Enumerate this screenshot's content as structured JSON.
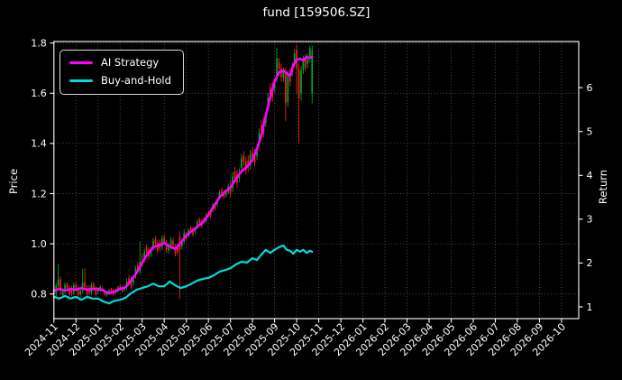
{
  "title": "fund [159506.SZ]",
  "legend": {
    "items": [
      {
        "label": "AI Strategy",
        "color": "#ff00ff"
      },
      {
        "label": "Buy-and-Hold",
        "color": "#00dcdc"
      }
    ]
  },
  "chart_data": {
    "type": "candlestick+line",
    "title": "fund [159506.SZ]",
    "left_axis_label": "Price",
    "right_axis_label": "Return",
    "x_tick_labels": [
      "2024-11",
      "2024-12",
      "2025-01",
      "2025-02",
      "2025-03",
      "2025-04",
      "2025-05",
      "2025-06",
      "2025-07",
      "2025-08",
      "2025-09",
      "2025-10",
      "2025-11",
      "2025-12",
      "2026-01",
      "2026-02",
      "2026-03",
      "2026-04",
      "2026-05",
      "2026-06",
      "2026-07",
      "2026-08",
      "2026-09",
      "2026-10"
    ],
    "x_range_months": [
      0,
      23.78
    ],
    "price_ticks": [
      "0.8",
      "1.0",
      "1.2",
      "1.4",
      "1.6",
      "1.8"
    ],
    "price_tick_values": [
      0.8,
      1.0,
      1.2,
      1.4,
      1.6,
      1.8
    ],
    "price_range": [
      0.702,
      1.806
    ],
    "return_ticks": [
      "1",
      "2",
      "3",
      "4",
      "5",
      "6"
    ],
    "return_tick_values": [
      1,
      2,
      3,
      4,
      5,
      6
    ],
    "return_range": [
      0.732,
      7.053
    ],
    "grid": true,
    "colors": {
      "background": "#000000",
      "axes_and_text": "#ffffff",
      "grid": "#6f6f6f",
      "candle_up": "#00a820",
      "candle_down": "#ef2020",
      "ai_strategy": "#ff00ff",
      "buy_and_hold": "#00dcdc"
    },
    "series": [
      {
        "name": "AI Strategy",
        "axis": "return",
        "style": "line",
        "points": [
          [
            0,
            1.37
          ],
          [
            0.25,
            1.41
          ],
          [
            0.5,
            1.37
          ],
          [
            0.75,
            1.41
          ],
          [
            1,
            1.39
          ],
          [
            1.25,
            1.43
          ],
          [
            1.5,
            1.39
          ],
          [
            1.75,
            1.41
          ],
          [
            2,
            1.41
          ],
          [
            2.25,
            1.37
          ],
          [
            2.5,
            1.31
          ],
          [
            2.75,
            1.35
          ],
          [
            3,
            1.41
          ],
          [
            3.25,
            1.45
          ],
          [
            3.5,
            1.6
          ],
          [
            3.75,
            1.78
          ],
          [
            4,
            2.01
          ],
          [
            4.25,
            2.21
          ],
          [
            4.5,
            2.36
          ],
          [
            4.75,
            2.4
          ],
          [
            5,
            2.46
          ],
          [
            5.25,
            2.38
          ],
          [
            5.5,
            2.32
          ],
          [
            5.75,
            2.46
          ],
          [
            6,
            2.63
          ],
          [
            6.25,
            2.73
          ],
          [
            6.5,
            2.83
          ],
          [
            6.75,
            2.93
          ],
          [
            7,
            3.1
          ],
          [
            7.25,
            3.3
          ],
          [
            7.5,
            3.5
          ],
          [
            7.75,
            3.62
          ],
          [
            8,
            3.72
          ],
          [
            8.25,
            3.92
          ],
          [
            8.5,
            4.09
          ],
          [
            8.75,
            4.2
          ],
          [
            9,
            4.35
          ],
          [
            9.2,
            4.6
          ],
          [
            9.4,
            4.91
          ],
          [
            9.6,
            5.36
          ],
          [
            9.8,
            5.77
          ],
          [
            10,
            6.14
          ],
          [
            10.2,
            6.35
          ],
          [
            10.4,
            6.39
          ],
          [
            10.55,
            6.33
          ],
          [
            10.7,
            6.27
          ],
          [
            10.85,
            6.51
          ],
          [
            11,
            6.64
          ],
          [
            11.15,
            6.66
          ],
          [
            11.3,
            6.62
          ],
          [
            11.45,
            6.7
          ],
          [
            11.6,
            6.68
          ],
          [
            11.7,
            6.7
          ]
        ]
      },
      {
        "name": "Buy-and-Hold",
        "axis": "return",
        "style": "line",
        "points": [
          [
            0,
            1.23
          ],
          [
            0.25,
            1.19
          ],
          [
            0.5,
            1.25
          ],
          [
            0.75,
            1.19
          ],
          [
            1,
            1.23
          ],
          [
            1.25,
            1.16
          ],
          [
            1.5,
            1.23
          ],
          [
            1.75,
            1.19
          ],
          [
            2,
            1.19
          ],
          [
            2.25,
            1.12
          ],
          [
            2.5,
            1.08
          ],
          [
            2.75,
            1.14
          ],
          [
            3,
            1.16
          ],
          [
            3.25,
            1.21
          ],
          [
            3.5,
            1.31
          ],
          [
            3.75,
            1.39
          ],
          [
            4,
            1.43
          ],
          [
            4.25,
            1.47
          ],
          [
            4.5,
            1.53
          ],
          [
            4.75,
            1.47
          ],
          [
            5,
            1.47
          ],
          [
            5.25,
            1.58
          ],
          [
            5.5,
            1.49
          ],
          [
            5.75,
            1.43
          ],
          [
            6,
            1.47
          ],
          [
            6.25,
            1.53
          ],
          [
            6.5,
            1.6
          ],
          [
            6.75,
            1.64
          ],
          [
            7,
            1.66
          ],
          [
            7.25,
            1.72
          ],
          [
            7.5,
            1.8
          ],
          [
            7.75,
            1.84
          ],
          [
            8,
            1.88
          ],
          [
            8.25,
            1.97
          ],
          [
            8.5,
            2.03
          ],
          [
            8.75,
            2.01
          ],
          [
            9,
            2.11
          ],
          [
            9.2,
            2.07
          ],
          [
            9.4,
            2.19
          ],
          [
            9.6,
            2.3
          ],
          [
            9.8,
            2.23
          ],
          [
            10,
            2.3
          ],
          [
            10.2,
            2.36
          ],
          [
            10.4,
            2.4
          ],
          [
            10.55,
            2.3
          ],
          [
            10.7,
            2.28
          ],
          [
            10.85,
            2.21
          ],
          [
            11,
            2.3
          ],
          [
            11.15,
            2.26
          ],
          [
            11.3,
            2.3
          ],
          [
            11.45,
            2.23
          ],
          [
            11.6,
            2.28
          ],
          [
            11.7,
            2.26
          ]
        ]
      }
    ],
    "candles_format": [
      "t_months",
      "open",
      "high",
      "low",
      "close"
    ],
    "candles": [
      [
        0.0,
        0.82,
        0.831,
        0.789,
        0.8
      ],
      [
        0.1,
        0.802,
        0.842,
        0.791,
        0.831
      ],
      [
        0.2,
        0.833,
        0.92,
        0.82,
        0.858
      ],
      [
        0.3,
        0.858,
        0.87,
        0.795,
        0.815
      ],
      [
        0.4,
        0.795,
        0.82,
        0.784,
        0.809
      ],
      [
        0.5,
        0.811,
        0.846,
        0.8,
        0.835
      ],
      [
        0.6,
        0.838,
        0.849,
        0.812,
        0.823
      ],
      [
        0.7,
        0.822,
        0.833,
        0.789,
        0.8
      ],
      [
        0.8,
        0.823,
        0.834,
        0.792,
        0.803
      ],
      [
        0.9,
        0.806,
        0.846,
        0.795,
        0.835
      ],
      [
        1.0,
        0.837,
        0.848,
        0.81,
        0.821
      ],
      [
        1.1,
        0.819,
        0.83,
        0.786,
        0.797
      ],
      [
        1.2,
        0.799,
        0.824,
        0.788,
        0.813
      ],
      [
        1.3,
        0.815,
        0.9,
        0.804,
        0.845
      ],
      [
        1.4,
        0.847,
        0.902,
        0.815,
        0.828
      ],
      [
        1.5,
        0.824,
        0.835,
        0.791,
        0.802
      ],
      [
        1.6,
        0.825,
        0.836,
        0.794,
        0.805
      ],
      [
        1.7,
        0.807,
        0.847,
        0.796,
        0.836
      ],
      [
        1.8,
        0.838,
        0.849,
        0.812,
        0.823
      ],
      [
        1.9,
        0.82,
        0.831,
        0.788,
        0.799
      ],
      [
        2.0,
        0.81,
        0.824,
        0.804,
        0.818
      ],
      [
        2.1,
        0.816,
        0.835,
        0.81,
        0.829
      ],
      [
        2.2,
        0.824,
        0.83,
        0.812,
        0.818
      ],
      [
        2.3,
        0.811,
        0.817,
        0.793,
        0.799
      ],
      [
        2.4,
        0.796,
        0.81,
        0.79,
        0.804
      ],
      [
        2.5,
        0.802,
        0.821,
        0.796,
        0.815
      ],
      [
        2.6,
        0.819,
        0.825,
        0.805,
        0.811
      ],
      [
        2.7,
        0.814,
        0.82,
        0.793,
        0.799
      ],
      [
        2.8,
        0.817,
        0.823,
        0.8,
        0.806
      ],
      [
        2.9,
        0.811,
        0.833,
        0.805,
        0.827
      ],
      [
        3.0,
        0.831,
        0.837,
        0.816,
        0.822
      ],
      [
        3.1,
        0.824,
        0.83,
        0.806,
        0.812
      ],
      [
        3.2,
        0.816,
        0.83,
        0.81,
        0.824
      ],
      [
        3.3,
        0.828,
        0.863,
        0.816,
        0.85
      ],
      [
        3.4,
        0.863,
        0.876,
        0.833,
        0.845
      ],
      [
        3.5,
        0.856,
        0.869,
        0.819,
        0.831
      ],
      [
        3.6,
        0.845,
        0.873,
        0.833,
        0.86
      ],
      [
        3.7,
        0.873,
        0.913,
        0.861,
        0.9
      ],
      [
        3.8,
        0.913,
        0.926,
        0.883,
        0.895
      ],
      [
        3.9,
        0.89,
        1.01,
        0.879,
        0.928
      ],
      [
        4.0,
        0.932,
        0.96,
        0.907,
        0.919
      ],
      [
        4.1,
        0.938,
        0.981,
        0.926,
        0.968
      ],
      [
        4.2,
        0.984,
        0.997,
        0.954,
        0.966
      ],
      [
        4.3,
        0.975,
        0.988,
        0.938,
        0.95
      ],
      [
        4.4,
        0.96,
        0.988,
        0.948,
        0.975
      ],
      [
        4.5,
        0.984,
        1.024,
        0.972,
        1.011
      ],
      [
        4.6,
        1.018,
        1.031,
        0.988,
        1.0
      ],
      [
        4.7,
        1.002,
        1.015,
        0.96,
        0.972
      ],
      [
        4.8,
        1.005,
        1.018,
        0.97,
        0.982
      ],
      [
        4.9,
        0.988,
        1.033,
        0.976,
        1.02
      ],
      [
        5.0,
        1.026,
        1.039,
        0.997,
        1.009
      ],
      [
        5.1,
        1.002,
        1.015,
        0.965,
        0.977
      ],
      [
        5.2,
        0.974,
        1.002,
        0.962,
        0.989
      ],
      [
        5.3,
        0.987,
        1.027,
        0.975,
        1.014
      ],
      [
        5.4,
        1.012,
        1.025,
        0.982,
        0.994
      ],
      [
        5.5,
        0.987,
        1.0,
        0.95,
        0.962
      ],
      [
        5.6,
        0.99,
        1.003,
        0.953,
        0.965
      ],
      [
        5.7,
        1.03,
        1.05,
        0.78,
        0.975
      ],
      [
        5.8,
        0.99,
        1.021,
        0.978,
        1.008
      ],
      [
        5.9,
        1.011,
        1.057,
        0.999,
        1.044
      ],
      [
        6.0,
        1.038,
        1.047,
        1.013,
        1.022
      ],
      [
        6.1,
        1.031,
        1.063,
        1.022,
        1.054
      ],
      [
        6.2,
        1.063,
        1.072,
        1.045,
        1.054
      ],
      [
        6.3,
        1.056,
        1.065,
        1.029,
        1.038
      ],
      [
        6.4,
        1.048,
        1.067,
        1.039,
        1.058
      ],
      [
        6.5,
        1.067,
        1.096,
        1.058,
        1.087
      ],
      [
        6.6,
        1.097,
        1.106,
        1.075,
        1.084
      ],
      [
        6.7,
        1.09,
        1.099,
        1.063,
        1.072
      ],
      [
        6.8,
        1.097,
        1.106,
        1.079,
        1.088
      ],
      [
        6.9,
        1.091,
        1.123,
        1.082,
        1.114
      ],
      [
        7.0,
        1.124,
        1.133,
        1.103,
        1.112
      ],
      [
        7.1,
        1.129,
        1.138,
        1.102,
        1.111
      ],
      [
        7.2,
        1.134,
        1.163,
        1.125,
        1.154
      ],
      [
        7.3,
        1.158,
        1.167,
        1.131,
        1.14
      ],
      [
        7.4,
        1.157,
        1.176,
        1.148,
        1.167
      ],
      [
        7.5,
        1.185,
        1.214,
        1.176,
        1.205
      ],
      [
        7.6,
        1.214,
        1.223,
        1.192,
        1.201
      ],
      [
        7.7,
        1.206,
        1.215,
        1.179,
        1.188
      ],
      [
        7.8,
        1.195,
        1.214,
        1.186,
        1.205
      ],
      [
        7.9,
        1.207,
        1.239,
        1.198,
        1.23
      ],
      [
        8.0,
        1.234,
        1.252,
        1.185,
        1.202
      ],
      [
        8.1,
        1.223,
        1.286,
        1.206,
        1.268
      ],
      [
        8.2,
        1.288,
        1.306,
        1.246,
        1.263
      ],
      [
        8.3,
        1.277,
        1.295,
        1.225,
        1.242
      ],
      [
        8.4,
        1.261,
        1.3,
        1.244,
        1.282
      ],
      [
        8.5,
        1.303,
        1.359,
        1.286,
        1.341
      ],
      [
        8.6,
        1.351,
        1.369,
        1.309,
        1.326
      ],
      [
        8.7,
        1.329,
        1.347,
        1.277,
        1.294
      ],
      [
        8.8,
        1.334,
        1.352,
        1.285,
        1.302
      ],
      [
        8.9,
        1.312,
        1.375,
        1.295,
        1.357
      ],
      [
        9.0,
        1.367,
        1.385,
        1.325,
        1.342
      ],
      [
        9.1,
        1.36,
        1.378,
        1.308,
        1.325
      ],
      [
        9.2,
        1.35,
        1.389,
        1.333,
        1.371
      ],
      [
        9.3,
        1.404,
        1.46,
        1.387,
        1.442
      ],
      [
        9.4,
        1.474,
        1.492,
        1.432,
        1.449
      ],
      [
        9.5,
        1.484,
        1.502,
        1.425,
        1.442
      ],
      [
        9.6,
        1.483,
        1.522,
        1.466,
        1.504
      ],
      [
        9.7,
        1.544,
        1.6,
        1.53,
        1.582
      ],
      [
        9.8,
        1.622,
        1.64,
        1.58,
        1.597
      ],
      [
        9.9,
        1.626,
        1.644,
        1.567,
        1.584
      ],
      [
        10.0,
        1.62,
        1.659,
        1.603,
        1.641
      ],
      [
        10.1,
        1.663,
        1.78,
        1.645,
        1.74
      ],
      [
        10.2,
        1.723,
        1.741,
        1.681,
        1.698
      ],
      [
        10.3,
        1.699,
        1.717,
        1.647,
        1.664
      ],
      [
        10.4,
        1.663,
        1.702,
        1.646,
        1.684
      ],
      [
        10.5,
        1.685,
        1.7,
        1.49,
        1.56
      ],
      [
        10.6,
        1.565,
        1.69,
        1.545,
        1.675
      ],
      [
        10.7,
        1.68,
        1.698,
        1.628,
        1.645
      ],
      [
        10.8,
        1.684,
        1.723,
        1.667,
        1.705
      ],
      [
        10.9,
        1.72,
        1.776,
        1.703,
        1.758
      ],
      [
        11.0,
        1.773,
        1.791,
        1.6,
        1.698
      ],
      [
        11.1,
        1.7,
        1.72,
        1.4,
        1.58
      ],
      [
        11.2,
        1.6,
        1.71,
        1.57,
        1.69
      ],
      [
        11.3,
        1.694,
        1.75,
        1.677,
        1.732
      ],
      [
        11.4,
        1.74,
        1.758,
        1.686,
        1.703
      ],
      [
        11.5,
        1.717,
        1.756,
        1.7,
        1.738
      ],
      [
        11.6,
        1.739,
        1.79,
        1.722,
        1.777
      ],
      [
        11.7,
        1.6,
        1.79,
        1.56,
        1.77
      ]
    ]
  }
}
